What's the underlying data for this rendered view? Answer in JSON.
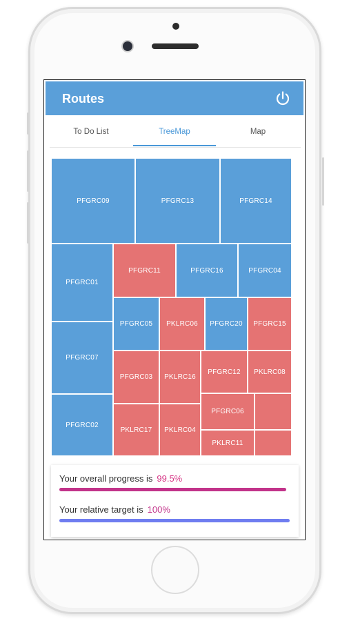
{
  "app": {
    "title": "Routes",
    "power_icon": "power-icon"
  },
  "tabs": [
    {
      "label": "To Do List",
      "active": false
    },
    {
      "label": "TreeMap",
      "active": true
    },
    {
      "label": "Map",
      "active": false
    }
  ],
  "treemap": {
    "colors": {
      "blue": "#5a9fd9",
      "red": "#e57373"
    },
    "cells": [
      {
        "label": "PFGRC09",
        "color": "blue"
      },
      {
        "label": "PFGRC13",
        "color": "blue"
      },
      {
        "label": "PFGRC14",
        "color": "blue"
      },
      {
        "label": "PFGRC01",
        "color": "blue"
      },
      {
        "label": "PFGRC11",
        "color": "red"
      },
      {
        "label": "PFGRC16",
        "color": "blue"
      },
      {
        "label": "PFGRC04",
        "color": "blue"
      },
      {
        "label": "PFGRC05",
        "color": "blue"
      },
      {
        "label": "PKLRC06",
        "color": "red"
      },
      {
        "label": "PFGRC20",
        "color": "blue"
      },
      {
        "label": "PFGRC15",
        "color": "red"
      },
      {
        "label": "PFGRC07",
        "color": "blue"
      },
      {
        "label": "PFGRC03",
        "color": "red"
      },
      {
        "label": "PKLRC16",
        "color": "red"
      },
      {
        "label": "PFGRC12",
        "color": "red"
      },
      {
        "label": "PKLRC08",
        "color": "red"
      },
      {
        "label": "PFGRC02",
        "color": "blue"
      },
      {
        "label": "PFGRC06",
        "color": "red"
      },
      {
        "label": "",
        "color": "red"
      },
      {
        "label": "PKLRC17",
        "color": "red"
      },
      {
        "label": "PKLRC04",
        "color": "red"
      },
      {
        "label": "PKLRC11",
        "color": "red"
      },
      {
        "label": "",
        "color": "red"
      }
    ]
  },
  "progress": {
    "overall_label": "Your overall progress is",
    "overall_value": "99.5%",
    "overall_fraction": 0.995,
    "overall_color": "#c2338a",
    "target_label": "Your relative target is",
    "target_value": "100%",
    "target_fraction": 1.0,
    "target_color": "#6f7df0"
  }
}
